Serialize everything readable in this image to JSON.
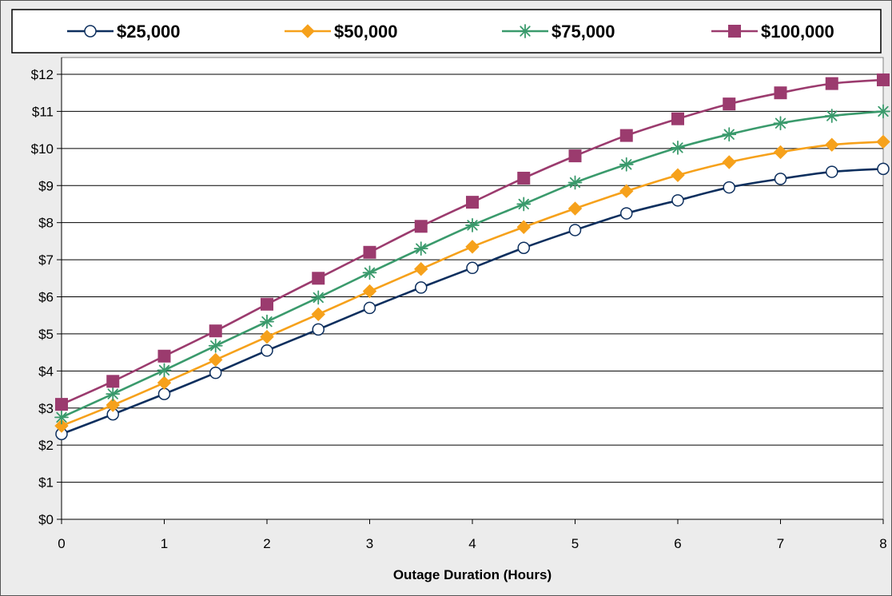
{
  "chart_data": {
    "type": "line",
    "title": "",
    "xlabel": "Outage Duration (Hours)",
    "ylabel": "",
    "x": [
      0,
      0.5,
      1,
      1.5,
      2,
      2.5,
      3,
      3.5,
      4,
      4.5,
      5,
      5.5,
      6,
      6.5,
      7,
      7.5,
      8
    ],
    "xlim": [
      0,
      8
    ],
    "ylim": [
      0,
      12
    ],
    "x_ticks": [
      0,
      1,
      2,
      3,
      4,
      5,
      6,
      7,
      8
    ],
    "x_tick_labels": [
      "0",
      "1",
      "2",
      "3",
      "4",
      "5",
      "6",
      "7",
      "8"
    ],
    "y_ticks": [
      0,
      1,
      2,
      3,
      4,
      5,
      6,
      7,
      8,
      9,
      10,
      11,
      12
    ],
    "y_tick_labels": [
      "$0",
      "$1",
      "$2",
      "$3",
      "$4",
      "$5",
      "$6",
      "$7",
      "$8",
      "$9",
      "$10",
      "$11",
      "$12"
    ],
    "grid": "horizontal",
    "legend_position": "top",
    "series": [
      {
        "name": "$25,000",
        "color": "#0d2f5e",
        "marker": "circle-open",
        "values": [
          2.3,
          2.83,
          3.38,
          3.95,
          4.55,
          5.12,
          5.7,
          6.25,
          6.78,
          7.32,
          7.8,
          8.25,
          8.6,
          8.95,
          9.18,
          9.37,
          9.45
        ]
      },
      {
        "name": "$50,000",
        "color": "#f6a11b",
        "marker": "diamond",
        "values": [
          2.52,
          3.08,
          3.68,
          4.3,
          4.92,
          5.53,
          6.15,
          6.75,
          7.35,
          7.88,
          8.38,
          8.85,
          9.28,
          9.63,
          9.9,
          10.1,
          10.18
        ]
      },
      {
        "name": "$75,000",
        "color": "#3a9a6c",
        "marker": "asterisk",
        "values": [
          2.75,
          3.38,
          4.02,
          4.68,
          5.33,
          5.98,
          6.65,
          7.3,
          7.93,
          8.5,
          9.08,
          9.57,
          10.02,
          10.38,
          10.68,
          10.88,
          11.0
        ]
      },
      {
        "name": "$100,000",
        "color": "#9b3b6e",
        "marker": "square",
        "values": [
          3.1,
          3.72,
          4.4,
          5.08,
          5.8,
          6.5,
          7.2,
          7.9,
          8.55,
          9.2,
          9.8,
          10.35,
          10.8,
          11.2,
          11.5,
          11.75,
          11.85
        ]
      }
    ]
  }
}
